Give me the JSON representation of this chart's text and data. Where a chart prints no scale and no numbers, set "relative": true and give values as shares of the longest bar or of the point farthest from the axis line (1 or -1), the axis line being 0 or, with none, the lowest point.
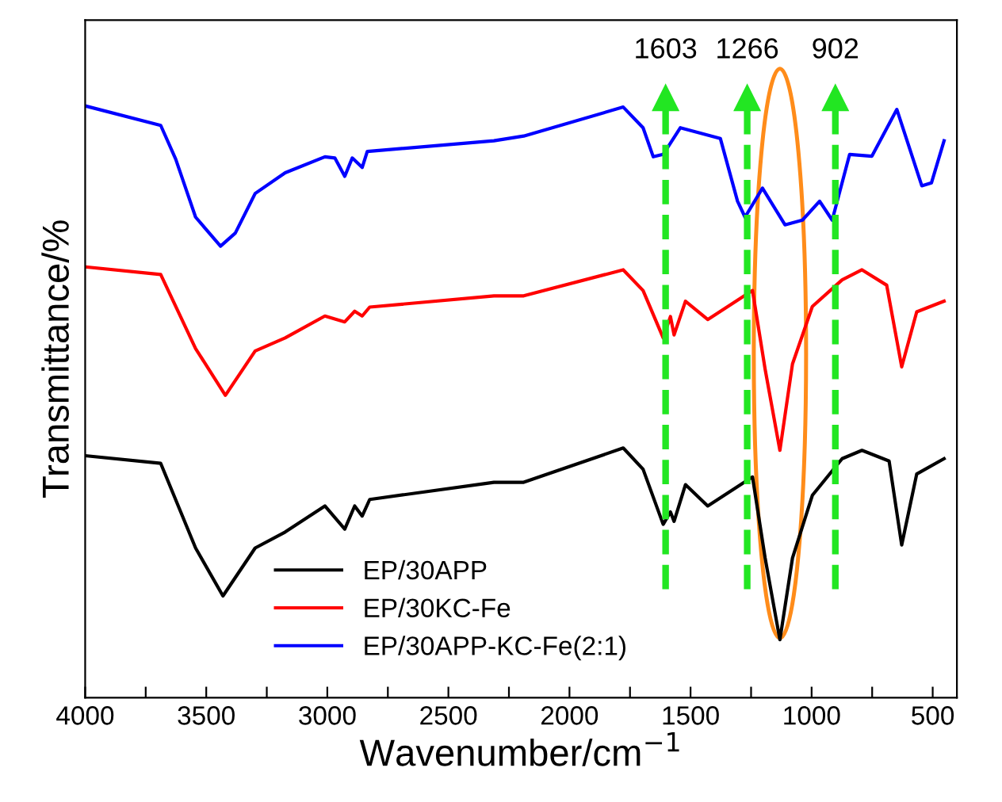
{
  "chart_data": {
    "type": "line",
    "relative": true,
    "xlabel": "Wavenumber/cm$^{−1}$",
    "ylabel": "Transmittance/%",
    "xlim": [
      4000,
      400
    ],
    "xticks": [
      4000,
      {
        "value": 3750,
        "label": null
      },
      3500,
      {
        "value": 3250,
        "label": null
      },
      3000,
      {
        "value": 2750,
        "label": null
      },
      2500,
      {
        "value": 2250,
        "label": null
      },
      2000,
      {
        "value": 1750,
        "label": null
      },
      1500,
      {
        "value": 1250,
        "label": null
      },
      1000,
      {
        "value": 750,
        "label": null
      },
      500
    ],
    "tick_labels": "x",
    "legend": "bottom",
    "grid": false,
    "marker": "none",
    "line_style": "solid",
    "series": [
      {
        "name": "EP/30APP",
        "color": "#000000",
        "x": [
          4000,
          3688,
          3544,
          3431,
          3298,
          3174,
          3010,
          2928,
          2887,
          2856,
          2825,
          2312,
          2189,
          1778,
          1696,
          1613,
          1583,
          1568,
          1521,
          1429,
          1244,
          1192,
          1131,
          1079,
          997,
          874,
          792,
          680,
          628,
          566,
          453
        ],
        "values": [
          0.409,
          0.396,
          0.253,
          0.172,
          0.253,
          0.28,
          0.324,
          0.285,
          0.324,
          0.307,
          0.335,
          0.364,
          0.364,
          0.422,
          0.386,
          0.293,
          0.314,
          0.298,
          0.36,
          0.324,
          0.373,
          0.236,
          0.098,
          0.236,
          0.342,
          0.404,
          0.418,
          0.4,
          0.258,
          0.378,
          0.404
        ]
      },
      {
        "name": "EP/30KC-Fe",
        "color": "#ff0000",
        "x": [
          4000,
          3688,
          3544,
          3421,
          3298,
          3174,
          3010,
          2928,
          2887,
          2856,
          2825,
          2312,
          2189,
          1778,
          1696,
          1613,
          1583,
          1568,
          1521,
          1429,
          1244,
          1192,
          1131,
          1079,
          997,
          874,
          792,
          690,
          628,
          566,
          453
        ],
        "values": [
          0.728,
          0.715,
          0.59,
          0.511,
          0.586,
          0.608,
          0.645,
          0.635,
          0.653,
          0.645,
          0.66,
          0.679,
          0.679,
          0.723,
          0.688,
          0.608,
          0.644,
          0.613,
          0.67,
          0.639,
          0.688,
          0.555,
          0.418,
          0.564,
          0.661,
          0.706,
          0.723,
          0.697,
          0.559,
          0.652,
          0.67
        ]
      },
      {
        "name": "EP/30APP-KC-Fe(2:1)",
        "color": "#0000ff",
        "x": [
          4000,
          3688,
          3626,
          3544,
          3441,
          3380,
          3298,
          3174,
          3010,
          2969,
          2928,
          2897,
          2856,
          2835,
          2312,
          2189,
          1778,
          1696,
          1654,
          1613,
          1542,
          1377,
          1306,
          1275,
          1203,
          1110,
          1038,
          967,
          915,
          843,
          751,
          648,
          545,
          505,
          453
        ],
        "values": [
          1.0,
          0.967,
          0.91,
          0.812,
          0.763,
          0.785,
          0.852,
          0.887,
          0.914,
          0.912,
          0.881,
          0.912,
          0.896,
          0.923,
          0.941,
          0.949,
          0.998,
          0.963,
          0.914,
          0.918,
          0.963,
          0.945,
          0.839,
          0.812,
          0.861,
          0.799,
          0.807,
          0.839,
          0.807,
          0.918,
          0.915,
          0.994,
          0.865,
          0.87,
          0.941
        ]
      }
    ],
    "ref_lines": [
      {
        "axis": "x",
        "value": 1603,
        "label": "1603",
        "color": "#22e622",
        "line_style": "dashed"
      },
      {
        "axis": "x",
        "value": 1266,
        "label": "1266",
        "color": "#22e622",
        "line_style": "dashed"
      },
      {
        "axis": "x",
        "value": 902,
        "label": "902",
        "color": "#22e622",
        "line_style": "dashed"
      }
    ]
  }
}
